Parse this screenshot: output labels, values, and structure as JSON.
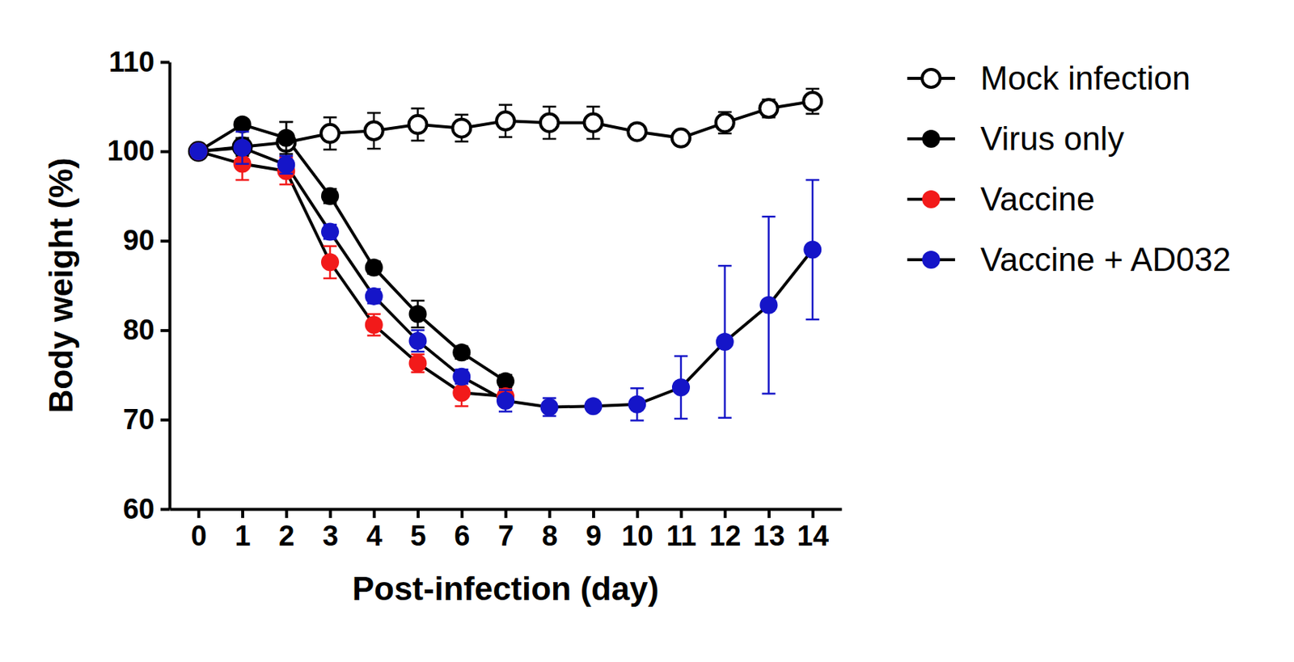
{
  "chart_data": {
    "type": "line",
    "x_label": "Post-infection (day)",
    "y_label": "Body weight (%)",
    "x": [
      0,
      1,
      2,
      3,
      4,
      5,
      6,
      7,
      8,
      9,
      10,
      11,
      12,
      13,
      14
    ],
    "xlim": [
      -0.66,
      14.66
    ],
    "xticks": [
      0,
      1,
      2,
      3,
      4,
      5,
      6,
      7,
      8,
      9,
      10,
      11,
      12,
      13,
      14
    ],
    "ylim": [
      60,
      110
    ],
    "yticks": [
      60,
      70,
      80,
      90,
      100,
      110
    ],
    "legend": "right",
    "series": [
      {
        "name": "Mock infection",
        "color": "#000000",
        "marker": "open_circle",
        "values": [
          100,
          100.5,
          101,
          102,
          102.3,
          103,
          102.6,
          103.4,
          103.2,
          103.2,
          102.2,
          101.5,
          103.2,
          104.8,
          105.6
        ],
        "errors": [
          0,
          1,
          2.3,
          1.8,
          2,
          1.8,
          1.5,
          1.8,
          1.8,
          1.8,
          0.8,
          0.8,
          1.2,
          1,
          1.4
        ]
      },
      {
        "name": "Virus only",
        "color": "#000000",
        "marker": "circle",
        "values": [
          100,
          103,
          101.5,
          95,
          87,
          81.8,
          77.5,
          74.3,
          null,
          null,
          null,
          null,
          null,
          null,
          null
        ],
        "errors": [
          0,
          0.5,
          1.8,
          0.8,
          0.7,
          1.5,
          0.7,
          0.7,
          null,
          null,
          null,
          null,
          null,
          null,
          null
        ]
      },
      {
        "name": "Vaccine",
        "color": "#f21a1a",
        "marker": "circle",
        "values": [
          100,
          98.6,
          97.8,
          87.6,
          80.6,
          76.3,
          73,
          72.6,
          null,
          null,
          null,
          null,
          null,
          null,
          null
        ],
        "errors": [
          0,
          1.8,
          1.5,
          1.8,
          1.2,
          1,
          1.5,
          0.8,
          null,
          null,
          null,
          null,
          null,
          null,
          null
        ]
      },
      {
        "name": "Vaccine + AD032",
        "color": "#1515c8",
        "marker": "circle",
        "values": [
          100,
          100.4,
          98.5,
          91,
          83.8,
          78.8,
          74.8,
          72.1,
          71.4,
          71.5,
          71.7,
          73.6,
          78.7,
          82.8,
          89
        ],
        "errors": [
          0,
          1.8,
          1,
          0.8,
          0.8,
          1.2,
          0.8,
          1.2,
          1,
          0.5,
          1.8,
          3.5,
          8.5,
          9.9,
          7.8
        ]
      }
    ]
  }
}
